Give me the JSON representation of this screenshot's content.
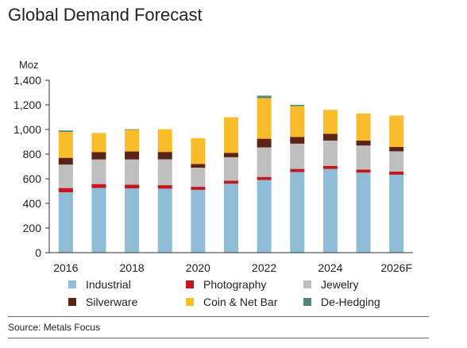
{
  "chart_data": {
    "type": "bar",
    "stacked": true,
    "title": "Global Demand Forecast",
    "ylabel": "Moz",
    "ylim": [
      0,
      1400
    ],
    "yticks": [
      0,
      200,
      400,
      600,
      800,
      1000,
      1200,
      1400
    ],
    "ytick_labels": [
      "0",
      "200",
      "400",
      "600",
      "800",
      "1,000",
      "1,200",
      "1,400"
    ],
    "categories": [
      "2016",
      "2017",
      "2018",
      "2019",
      "2020",
      "2021",
      "2022",
      "2023",
      "2024",
      "2025",
      "2026F"
    ],
    "xtick_labels": [
      "2016",
      "",
      "2018",
      "",
      "2020",
      "",
      "2022",
      "",
      "2024",
      "",
      "2026F"
    ],
    "legend_position": "bottom",
    "grid": false,
    "series": [
      {
        "name": "Industrial",
        "color": "#8fbcd7",
        "values": [
          490,
          525,
          522,
          520,
          510,
          560,
          590,
          655,
          680,
          650,
          633
        ]
      },
      {
        "name": "Photography",
        "color": "#c4161c",
        "values": [
          35,
          32,
          30,
          28,
          25,
          25,
          25,
          25,
          25,
          25,
          25
        ]
      },
      {
        "name": "Jewelry",
        "color": "#bfbfbf",
        "values": [
          190,
          200,
          205,
          210,
          155,
          190,
          240,
          205,
          205,
          195,
          165
        ]
      },
      {
        "name": "Silverware",
        "color": "#5c2414",
        "values": [
          55,
          60,
          65,
          60,
          30,
          35,
          70,
          55,
          55,
          40,
          35
        ]
      },
      {
        "name": "Coin & Net Bar",
        "color": "#fbbc2c",
        "values": [
          210,
          155,
          175,
          185,
          210,
          290,
          330,
          250,
          195,
          220,
          255
        ]
      },
      {
        "name": "De-Hedging",
        "color": "#4a8a7a",
        "values": [
          12,
          0,
          5,
          0,
          0,
          0,
          20,
          10,
          0,
          0,
          0
        ]
      }
    ]
  },
  "source": "Source: Metals Focus"
}
